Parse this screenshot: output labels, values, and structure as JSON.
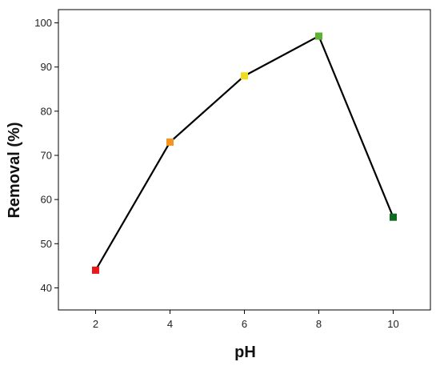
{
  "chart_data": {
    "type": "line",
    "title": "",
    "xlabel": "pH",
    "ylabel": "Removal (%)",
    "x": [
      2,
      4,
      6,
      8,
      10
    ],
    "xticks": [
      2,
      4,
      6,
      8,
      10
    ],
    "xlim": [
      1,
      11
    ],
    "ylim": [
      35,
      103
    ],
    "yticks": [
      40,
      50,
      60,
      70,
      80,
      90,
      100
    ],
    "grid": false,
    "legend": "none",
    "series": [
      {
        "values": [
          44,
          73,
          88,
          97,
          56
        ],
        "line_color": "#000000",
        "marker": "square",
        "marker_colors": [
          "#e8171a",
          "#f7941d",
          "#f0dc1c",
          "#5db331",
          "#0f6b1f"
        ]
      }
    ]
  }
}
